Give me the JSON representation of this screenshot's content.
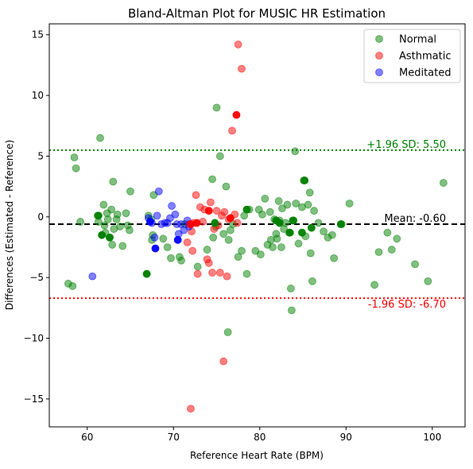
{
  "chart_data": {
    "type": "scatter",
    "title": "Bland-Altman Plot for MUSIC HR Estimation",
    "xlabel": "Reference Heart Rate (BPM)",
    "ylabel": "Differences (Estimated - Reference)",
    "xlim": [
      55.6,
      103.8
    ],
    "ylim": [
      -17.3,
      15.9
    ],
    "xticks": [
      60,
      70,
      80,
      90,
      100
    ],
    "yticks": [
      -15,
      -10,
      -5,
      0,
      5,
      10,
      15
    ],
    "grid": false,
    "legend_position": "top-right",
    "colors": {
      "Normal": "#008000",
      "Asthmatic": "#ff0000",
      "Meditated": "#0000ff"
    },
    "reference_lines": [
      {
        "label": "+1.96 SD: 5.50",
        "value": 5.5,
        "style": "dotted",
        "color": "#008000"
      },
      {
        "label": "Mean: -0.60",
        "value": -0.6,
        "style": "dashed",
        "color": "#000000"
      },
      {
        "label": "-1.96 SD: -6.70",
        "value": -6.7,
        "style": "dotted",
        "color": "#ff0000"
      }
    ],
    "series": [
      {
        "name": "Normal",
        "points": [
          [
            57.8,
            -5.5
          ],
          [
            58.3,
            -5.7
          ],
          [
            58.5,
            4.9
          ],
          [
            58.7,
            4.0
          ],
          [
            59.2,
            -0.4
          ],
          [
            61.2,
            0.1
          ],
          [
            61.3,
            -0.4
          ],
          [
            61.5,
            6.5
          ],
          [
            61.7,
            -1.5
          ],
          [
            61.9,
            1.0
          ],
          [
            62.0,
            -0.7
          ],
          [
            62.1,
            -1.3
          ],
          [
            62.3,
            0.3
          ],
          [
            62.4,
            -0.2
          ],
          [
            62.6,
            -1.7
          ],
          [
            62.8,
            0.6
          ],
          [
            62.9,
            -2.3
          ],
          [
            63.0,
            2.9
          ],
          [
            63.1,
            -1.0
          ],
          [
            63.4,
            -0.2
          ],
          [
            63.5,
            0.2
          ],
          [
            63.8,
            -0.8
          ],
          [
            64.1,
            -2.4
          ],
          [
            64.5,
            0.3
          ],
          [
            64.7,
            -0.7
          ],
          [
            64.9,
            -1.1
          ],
          [
            65.0,
            2.1
          ],
          [
            66.9,
            -4.7
          ],
          [
            67.1,
            0.1
          ],
          [
            67.4,
            -0.2
          ],
          [
            67.5,
            -1.9
          ],
          [
            67.6,
            -1.5
          ],
          [
            67.7,
            1.8
          ],
          [
            68.8,
            -1.8
          ],
          [
            69.3,
            -2.5
          ],
          [
            69.7,
            -3.4
          ],
          [
            70.7,
            -3.3
          ],
          [
            70.9,
            -3.6
          ],
          [
            71.3,
            -0.6
          ],
          [
            72.8,
            -4.1
          ],
          [
            73.9,
            -2.7
          ],
          [
            74.5,
            3.1
          ],
          [
            74.6,
            -1.7
          ],
          [
            74.9,
            -0.8
          ],
          [
            75.0,
            9.0
          ],
          [
            75.4,
            5.0
          ],
          [
            75.8,
            -1.4
          ],
          [
            76.1,
            2.5
          ],
          [
            76.3,
            -9.5
          ],
          [
            76.4,
            -1.9
          ],
          [
            76.6,
            -1.1
          ],
          [
            76.9,
            -0.6
          ],
          [
            77.5,
            -3.3
          ],
          [
            77.9,
            -2.8
          ],
          [
            78.2,
            0.1
          ],
          [
            78.5,
            -4.7
          ],
          [
            78.8,
            0.6
          ],
          [
            79.5,
            -2.8
          ],
          [
            79.9,
            0.6
          ],
          [
            80.1,
            -3.1
          ],
          [
            80.3,
            0.2
          ],
          [
            80.6,
            1.5
          ],
          [
            80.9,
            -2.3
          ],
          [
            81.2,
            0.4
          ],
          [
            81.3,
            -1.9
          ],
          [
            81.5,
            -2.5
          ],
          [
            81.7,
            -0.2
          ],
          [
            81.9,
            -1.4
          ],
          [
            82.0,
            -1.8
          ],
          [
            82.2,
            1.3
          ],
          [
            82.3,
            -0.3
          ],
          [
            82.5,
            -2.5
          ],
          [
            82.6,
            0.7
          ],
          [
            82.8,
            -1.0
          ],
          [
            83.0,
            -0.5
          ],
          [
            83.2,
            1.0
          ],
          [
            83.4,
            -1.3
          ],
          [
            83.6,
            -5.9
          ],
          [
            83.7,
            -7.7
          ],
          [
            83.8,
            -0.3
          ],
          [
            84.1,
            5.4
          ],
          [
            84.2,
            1.1
          ],
          [
            84.5,
            -2.2
          ],
          [
            84.9,
            0.8
          ],
          [
            85.1,
            3.0
          ],
          [
            85.3,
            -1.6
          ],
          [
            85.6,
            1.0
          ],
          [
            85.8,
            2.0
          ],
          [
            85.9,
            -3.0
          ],
          [
            86.1,
            -5.3
          ],
          [
            86.3,
            0.5
          ],
          [
            86.8,
            -0.5
          ],
          [
            87.4,
            -1.2
          ],
          [
            87.9,
            -1.7
          ],
          [
            88.4,
            -1.5
          ],
          [
            88.6,
            -3.4
          ],
          [
            89.5,
            -0.6
          ],
          [
            90.4,
            1.1
          ],
          [
            93.3,
            -5.6
          ],
          [
            93.8,
            -2.9
          ],
          [
            94.8,
            -1.3
          ],
          [
            95.3,
            -2.7
          ],
          [
            95.9,
            -1.8
          ],
          [
            98.0,
            -3.9
          ],
          [
            99.5,
            -5.3
          ],
          [
            101.3,
            2.8
          ]
        ]
      },
      {
        "name": "Asthmatic",
        "points": [
          [
            71.6,
            -2.1
          ],
          [
            71.8,
            -0.6
          ],
          [
            72.0,
            -15.8
          ],
          [
            72.1,
            -1.2
          ],
          [
            72.2,
            -2.8
          ],
          [
            72.3,
            -0.5
          ],
          [
            72.6,
            1.8
          ],
          [
            72.8,
            -4.7
          ],
          [
            73.1,
            0.8
          ],
          [
            73.4,
            -0.4
          ],
          [
            73.6,
            0.6
          ],
          [
            73.9,
            -3.5
          ],
          [
            74.1,
            -3.8
          ],
          [
            74.3,
            1.2
          ],
          [
            74.5,
            -4.6
          ],
          [
            74.7,
            -1.0
          ],
          [
            75.0,
            0.5
          ],
          [
            75.2,
            -0.7
          ],
          [
            75.4,
            -4.6
          ],
          [
            75.6,
            0.1
          ],
          [
            75.8,
            -11.9
          ],
          [
            75.9,
            0.4
          ],
          [
            76.2,
            -4.9
          ],
          [
            76.4,
            -0.2
          ],
          [
            76.8,
            7.1
          ],
          [
            77.1,
            0.2
          ],
          [
            77.5,
            14.2
          ],
          [
            77.9,
            12.2
          ],
          [
            77.4,
            -0.5
          ]
        ]
      },
      {
        "name": "Meditated",
        "points": [
          [
            60.6,
            -4.9
          ],
          [
            67.1,
            -0.1
          ],
          [
            67.5,
            -0.5
          ],
          [
            67.8,
            -1.7
          ],
          [
            68.1,
            0.1
          ],
          [
            68.3,
            2.1
          ],
          [
            68.6,
            -0.6
          ],
          [
            69.0,
            -0.5
          ],
          [
            69.3,
            -0.5
          ],
          [
            69.6,
            -0.1
          ],
          [
            69.8,
            0.9
          ],
          [
            70.2,
            0.2
          ],
          [
            70.4,
            -0.6
          ],
          [
            70.6,
            -1.4
          ],
          [
            70.9,
            -0.6
          ],
          [
            71.2,
            -1.1
          ],
          [
            71.6,
            -0.3
          ],
          [
            71.8,
            -0.8
          ]
        ]
      }
    ],
    "solid_points": {
      "Normal": [
        [
          61.3,
          0.1
        ],
        [
          61.7,
          -1.5
        ],
        [
          62.6,
          -1.7
        ],
        [
          66.9,
          -4.7
        ],
        [
          74.8,
          -0.5
        ],
        [
          78.5,
          0.6
        ],
        [
          81.9,
          -0.3
        ],
        [
          82.3,
          -0.5
        ],
        [
          83.5,
          -1.3
        ],
        [
          83.9,
          -0.3
        ],
        [
          84.9,
          -1.3
        ],
        [
          85.2,
          3.0
        ],
        [
          86.0,
          -0.9
        ],
        [
          89.4,
          -0.6
        ]
      ],
      "Asthmatic": [
        [
          72.0,
          -0.6
        ],
        [
          72.7,
          -0.5
        ],
        [
          74.1,
          0.5
        ],
        [
          76.6,
          -0.1
        ],
        [
          77.3,
          8.4
        ]
      ],
      "Meditated": [
        [
          67.9,
          -2.6
        ],
        [
          70.5,
          -1.9
        ],
        [
          67.3,
          -0.4
        ]
      ]
    }
  }
}
